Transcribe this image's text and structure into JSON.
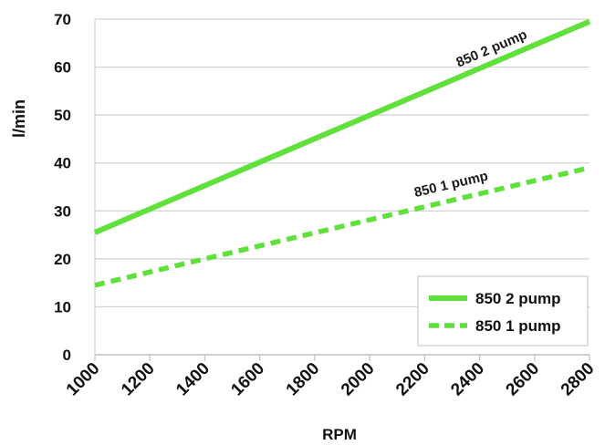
{
  "chart_data": {
    "type": "line",
    "title": "",
    "xlabel": "RPM",
    "ylabel": "l/min",
    "xlim": [
      1000,
      2800
    ],
    "ylim": [
      0,
      70
    ],
    "x_ticks": [
      "1000",
      "1200",
      "1400",
      "1600",
      "1800",
      "2000",
      "2200",
      "2400",
      "2600",
      "2800"
    ],
    "y_ticks": [
      "0",
      "10",
      "20",
      "30",
      "40",
      "50",
      "60",
      "70"
    ],
    "grid": "horizontal",
    "legend_position": "bottom-right",
    "series": [
      {
        "name": "850 2 pump",
        "style": "solid",
        "color": "#5fe03a",
        "x": [
          1000,
          2800
        ],
        "y": [
          25.5,
          69.5
        ],
        "inline_label": "850 2 pump"
      },
      {
        "name": "850 1 pump",
        "style": "dashed",
        "color": "#5fe03a",
        "x": [
          1000,
          1400,
          2800
        ],
        "y": [
          14.5,
          20,
          39
        ],
        "inline_label": "850 1 pump"
      }
    ]
  }
}
